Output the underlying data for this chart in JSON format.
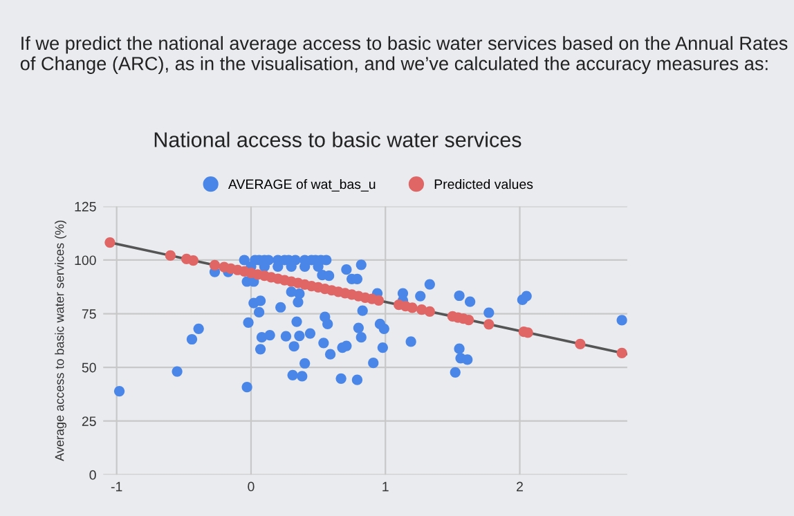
{
  "chart_data": {
    "type": "scatter",
    "title": "National access to basic water services",
    "ylabel": "Average access to basic water services (%)",
    "annotations": [
      "If we predict the national average access to basic water services based on the Annual Rates of Change (ARC), as in the visualisation, and we’ve calculated the accuracy measures as:"
    ],
    "xlim": [
      -1.1,
      2.8
    ],
    "xticks": [
      -1,
      0,
      1,
      2
    ],
    "ylim": [
      0,
      125
    ],
    "yticks": [
      0,
      25,
      50,
      75,
      100,
      125
    ],
    "grid": true,
    "legend": "top",
    "marker": "circle",
    "series": [
      {
        "name": "AVERAGE of wat_bas_u",
        "color": "#4a86e8",
        "x": [
          -0.98,
          -0.55,
          -0.44,
          -0.39,
          -0.27,
          -0.17,
          -0.05,
          0.03,
          0.06,
          0.1,
          0.13,
          0.2,
          0.25,
          0.28,
          0.33,
          0.4,
          0.45,
          0.48,
          0.52,
          0.56,
          0.0,
          0.1,
          0.2,
          0.3,
          0.4,
          0.5,
          0.53,
          -0.03,
          0.02,
          -0.03,
          -0.02,
          0.02,
          0.07,
          0.07,
          0.06,
          0.08,
          0.14,
          0.22,
          0.26,
          0.31,
          0.32,
          0.34,
          0.36,
          0.35,
          0.36,
          0.3,
          0.38,
          0.4,
          0.44,
          0.54,
          0.55,
          0.57,
          0.59,
          0.58,
          0.67,
          0.68,
          0.71,
          0.71,
          0.75,
          0.79,
          0.82,
          0.79,
          0.8,
          0.82,
          0.83,
          0.91,
          0.94,
          0.96,
          0.99,
          0.98,
          1.13,
          1.13,
          1.19,
          1.26,
          1.33,
          1.55,
          1.63,
          1.55,
          1.56,
          1.61,
          1.52,
          1.77,
          2.02,
          2.05,
          2.76
        ],
        "values": [
          38.9,
          48.1,
          63.1,
          68,
          94.5,
          94.5,
          100,
          100,
          100,
          100,
          100,
          100,
          100,
          100,
          100,
          100,
          100,
          100,
          100,
          100,
          97,
          97,
          97,
          97,
          97,
          97,
          93,
          90,
          90,
          40.8,
          70.9,
          80,
          58.5,
          81,
          75.7,
          64,
          65,
          78,
          64.5,
          46.4,
          59.8,
          71.3,
          64.7,
          80.4,
          84.3,
          85.2,
          45.9,
          51.9,
          65.8,
          61.4,
          73.5,
          70.2,
          56.1,
          92.7,
          44.8,
          59.2,
          60,
          95.6,
          91.2,
          91.2,
          97.8,
          44.2,
          68.4,
          64,
          76.4,
          52.1,
          84.5,
          70.2,
          68,
          59.2,
          84.5,
          81.2,
          62,
          83.2,
          88.7,
          83.4,
          80.6,
          58.7,
          54.3,
          53.6,
          47.7,
          75.5,
          81.5,
          83.2,
          72
        ]
      },
      {
        "color": "#555555",
        "type": "line",
        "marker": "none",
        "x": [
          -1.05,
          2.8
        ],
        "values": [
          108.2,
          56.2
        ]
      },
      {
        "name": "Predicted values",
        "color": "#e06666",
        "x": [
          -1.05,
          -0.6,
          -0.48,
          -0.43,
          -0.27,
          -0.2,
          -0.15,
          -0.1,
          -0.05,
          0,
          0.05,
          0.1,
          0.15,
          0.2,
          0.25,
          0.3,
          0.35,
          0.4,
          0.45,
          0.5,
          0.55,
          0.6,
          0.65,
          0.7,
          0.75,
          0.8,
          0.85,
          0.9,
          0.95,
          1.1,
          1.15,
          1.2,
          1.27,
          1.33,
          1.5,
          1.54,
          1.58,
          1.62,
          1.77,
          2.03,
          2.06,
          2.45,
          2.76
        ],
        "values": [
          108.2,
          102.1,
          100.5,
          99.8,
          97.6,
          96.7,
          96.0,
          95.4,
          94.7,
          94.0,
          93.3,
          92.7,
          92.0,
          91.3,
          90.6,
          90.0,
          89.3,
          88.6,
          87.9,
          87.3,
          86.6,
          85.9,
          85.2,
          84.6,
          83.9,
          83.2,
          82.5,
          81.9,
          81.2,
          79.2,
          78.5,
          77.8,
          76.9,
          76.0,
          73.8,
          73.2,
          72.7,
          72.1,
          70.1,
          66.6,
          66.2,
          60.9,
          56.7
        ]
      }
    ]
  }
}
